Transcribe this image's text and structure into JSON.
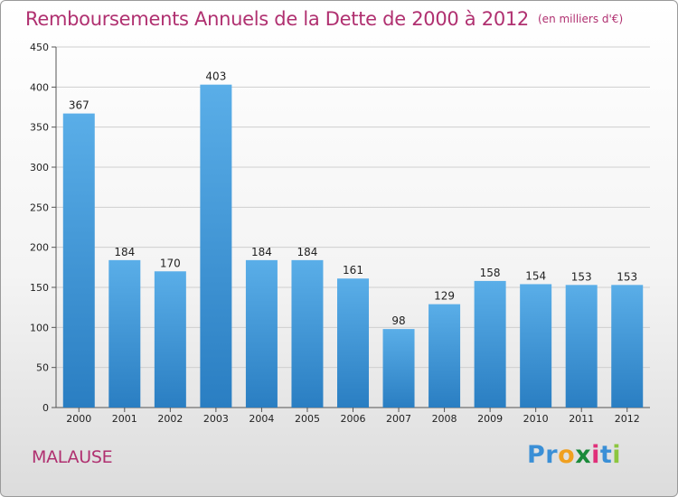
{
  "title": "Remboursements Annuels de la Dette de 2000 à 2012",
  "unit": "(en milliers d'€)",
  "commune": "MALAUSE",
  "logo": {
    "letters": [
      "P",
      "r",
      "o",
      "x",
      "i",
      "t",
      "i"
    ],
    "colors": [
      "#3a8fd6",
      "#3a8fd6",
      "#f0a020",
      "#1a8a3a",
      "#e0307a",
      "#3a8fd6",
      "#8cc63f"
    ]
  },
  "colors": {
    "bar_light": "#5aaee8",
    "bar_dark": "#2a7ec2",
    "title": "#b03070"
  },
  "chart_data": {
    "type": "bar",
    "title": "Remboursements Annuels de la Dette de 2000 à 2012",
    "categories": [
      "2000",
      "2001",
      "2002",
      "2003",
      "2004",
      "2005",
      "2006",
      "2007",
      "2008",
      "2009",
      "2010",
      "2011",
      "2012"
    ],
    "values": [
      367,
      184,
      170,
      403,
      184,
      184,
      161,
      98,
      129,
      158,
      154,
      153,
      153
    ],
    "ylim": [
      0,
      450
    ],
    "yticks": [
      0,
      50,
      100,
      150,
      200,
      250,
      300,
      350,
      400,
      450
    ],
    "grid": true,
    "xlabel": "",
    "ylabel": ""
  }
}
